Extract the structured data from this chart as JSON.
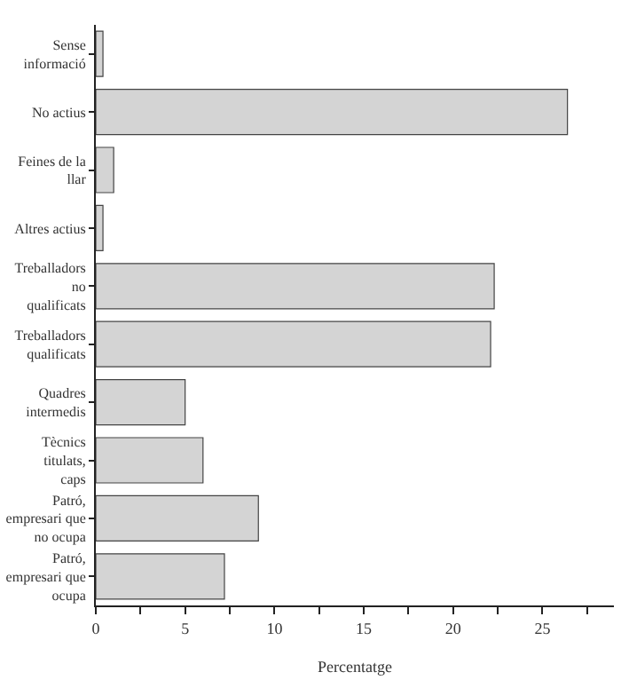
{
  "chart_data": {
    "type": "bar",
    "orientation": "horizontal",
    "xlabel": "Percentatge",
    "categories": [
      "Sense informació",
      "No actius",
      "Feines de la llar",
      "Altres actius",
      "Treballadors no qualificats",
      "Treballadors qualificats",
      "Quadres intermedis",
      "Tècnics titulats, caps",
      "Patró, empresari que no ocupa",
      "Patró, empresari que ocupa"
    ],
    "values": [
      0.4,
      26.4,
      1.0,
      0.4,
      22.3,
      22.1,
      5.0,
      6.0,
      9.1,
      7.2
    ],
    "color": "#d4d4d4",
    "xlim": [
      0,
      29
    ],
    "xticks": [
      0,
      {
        "value": 2.5,
        "label": null
      },
      5,
      {
        "value": 7.5,
        "label": null
      },
      10,
      {
        "value": 12.5,
        "label": null
      },
      15,
      {
        "value": 17.5,
        "label": null
      },
      20,
      {
        "value": 22.5,
        "label": null
      },
      25,
      {
        "value": 27.5,
        "label": null
      }
    ],
    "grid": false
  }
}
